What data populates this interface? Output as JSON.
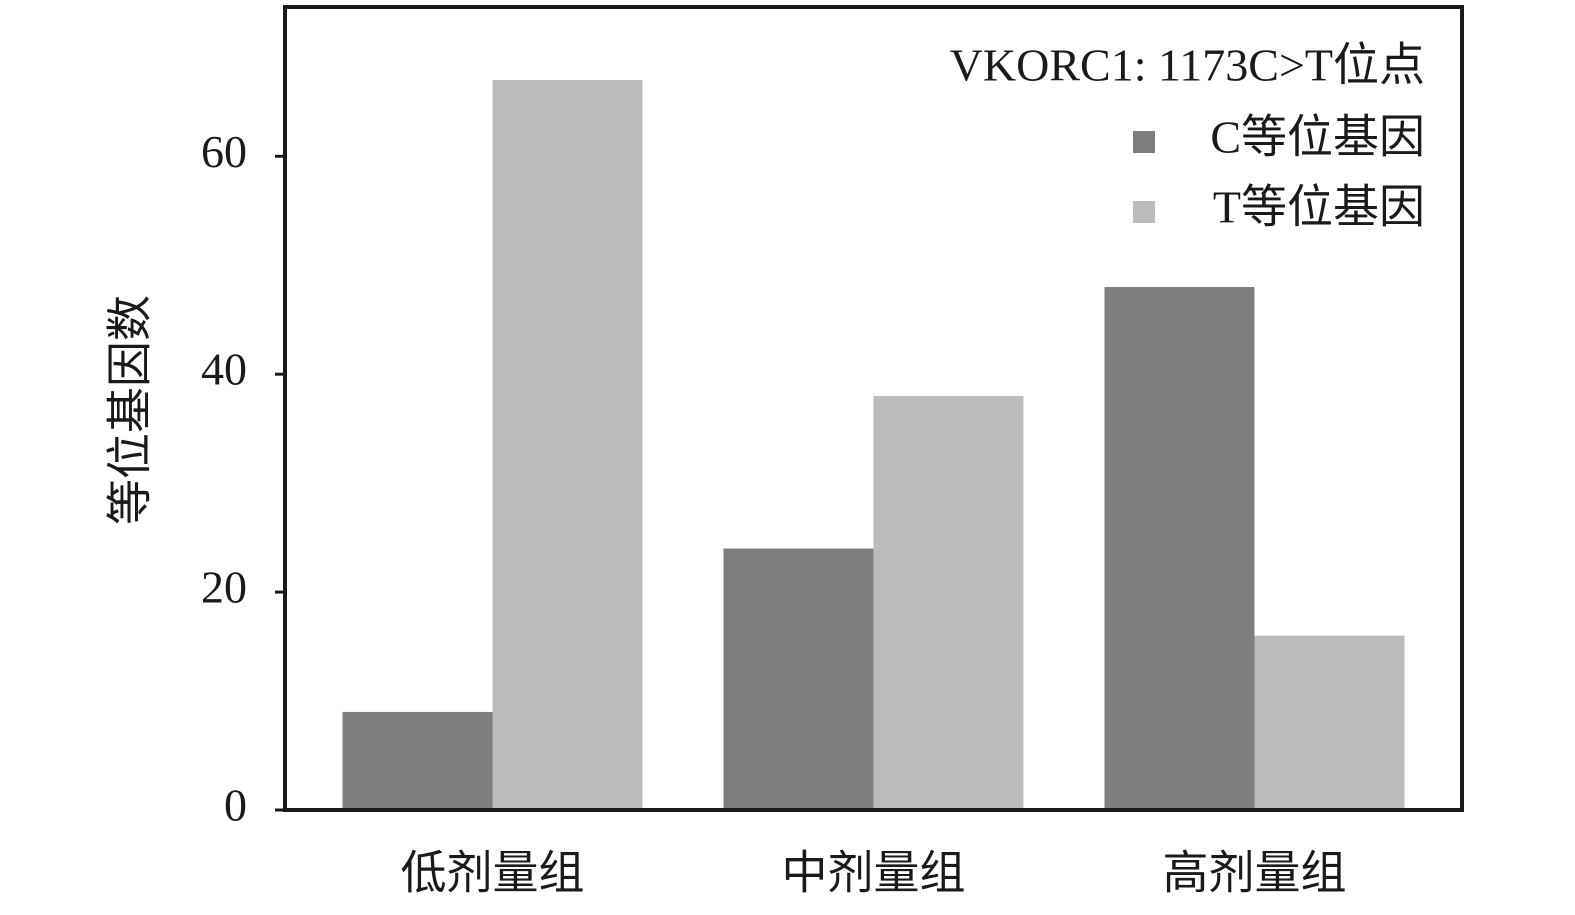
{
  "chart_data": {
    "type": "bar",
    "legend_title": "VKORC1: 1173C>T位点",
    "y_label": "等位基因数",
    "categories": [
      "低剂量组",
      "中剂量组",
      "高剂量组"
    ],
    "series": [
      {
        "name": "C等位基因",
        "color": "#7f7e7f",
        "values": [
          9,
          24,
          48
        ]
      },
      {
        "name": "T等位基因",
        "color": "#bbbbbb",
        "values": [
          67,
          38,
          16
        ]
      }
    ],
    "ylim": [
      0,
      73.7
    ],
    "yticks": [
      0,
      20,
      40,
      60
    ],
    "legend": "upper right"
  }
}
